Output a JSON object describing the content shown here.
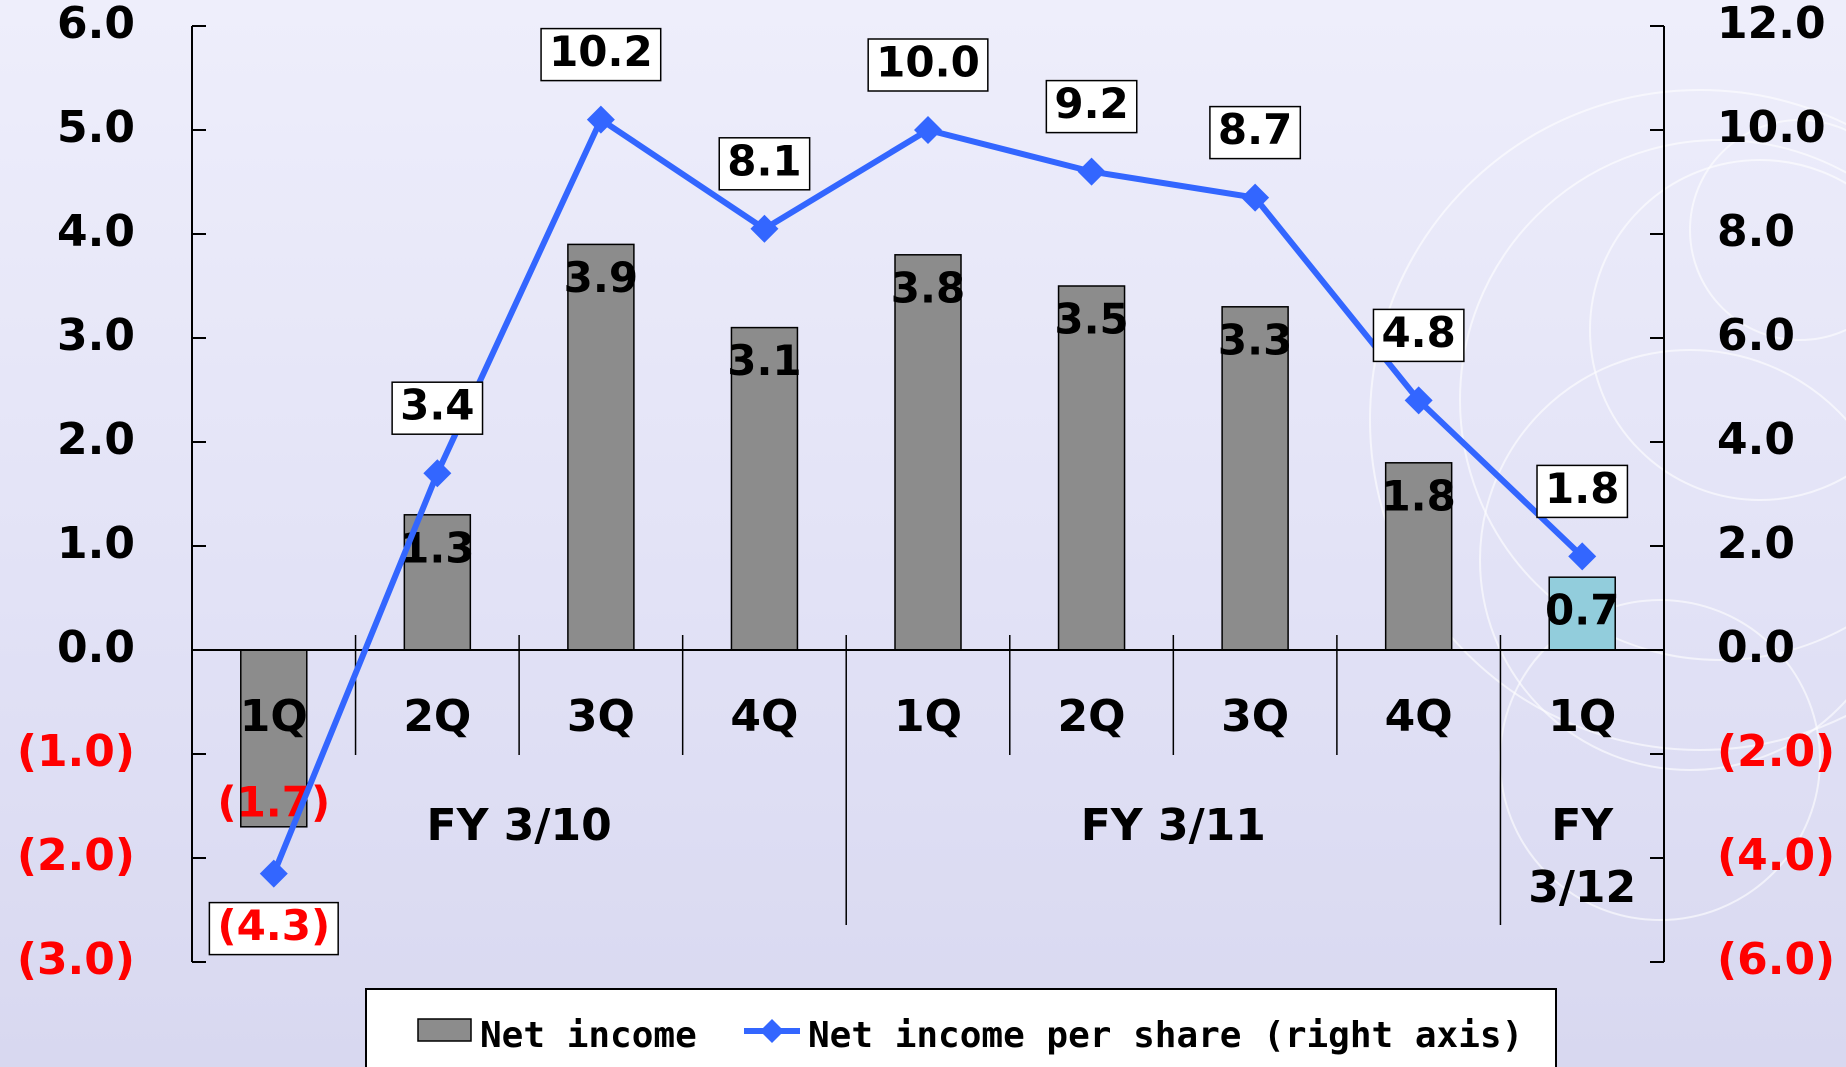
{
  "chart_data": {
    "type": "bar-line",
    "categories": [
      "1Q",
      "2Q",
      "3Q",
      "4Q",
      "1Q",
      "2Q",
      "3Q",
      "4Q",
      "1Q"
    ],
    "groups": [
      {
        "label": "FY 3/10",
        "span": 4
      },
      {
        "label": "FY 3/11",
        "span": 4
      },
      {
        "label": "FY 3/12",
        "span": 1
      }
    ],
    "series": [
      {
        "name": "Net income",
        "type": "bar",
        "color": "#8c8c8c",
        "colors": [
          "#8c8c8c",
          "#8c8c8c",
          "#8c8c8c",
          "#8c8c8c",
          "#8c8c8c",
          "#8c8c8c",
          "#8c8c8c",
          "#8c8c8c",
          "#92cddc"
        ],
        "values": [
          -1.7,
          1.3,
          3.9,
          3.1,
          3.8,
          3.5,
          3.3,
          1.8,
          0.7
        ],
        "value_labels": [
          "(1.7)",
          "1.3",
          "3.9",
          "3.1",
          "3.8",
          "3.5",
          "3.3",
          "1.8",
          "0.7"
        ]
      },
      {
        "name": "Net income per share (right axis)",
        "type": "line",
        "axis": "y2",
        "color": "#3366ff",
        "values": [
          -4.3,
          3.4,
          10.2,
          8.1,
          10.0,
          9.2,
          8.7,
          4.8,
          1.8
        ],
        "value_labels": [
          "(4.3)",
          "3.4",
          "10.2",
          "8.1",
          "10.0",
          "9.2",
          "8.7",
          "4.8",
          "1.8"
        ]
      }
    ],
    "ylim": [
      -3,
      6
    ],
    "yticks": [
      {
        "value": -3,
        "label": "(3.0)"
      },
      {
        "value": -2,
        "label": "(2.0)"
      },
      {
        "value": -1,
        "label": "(1.0)"
      },
      {
        "value": 0,
        "label": "0.0"
      },
      {
        "value": 1,
        "label": "1.0"
      },
      {
        "value": 2,
        "label": "2.0"
      },
      {
        "value": 3,
        "label": "3.0"
      },
      {
        "value": 4,
        "label": "4.0"
      },
      {
        "value": 5,
        "label": "5.0"
      },
      {
        "value": 6,
        "label": "6.0"
      }
    ],
    "y2lim": [
      -6,
      12
    ],
    "y2ticks": [
      {
        "value": -6,
        "label": "(6.0)"
      },
      {
        "value": -4,
        "label": "(4.0)"
      },
      {
        "value": -2,
        "label": "(2.0)"
      },
      {
        "value": 0,
        "label": "0.0"
      },
      {
        "value": 2,
        "label": "2.0"
      },
      {
        "value": 4,
        "label": "4.0"
      },
      {
        "value": 6,
        "label": "6.0"
      },
      {
        "value": 8,
        "label": "8.0"
      },
      {
        "value": 10,
        "label": "10.0"
      },
      {
        "value": 12,
        "label": "12.0"
      }
    ],
    "negative_color": "#ff0000",
    "grid": false
  }
}
